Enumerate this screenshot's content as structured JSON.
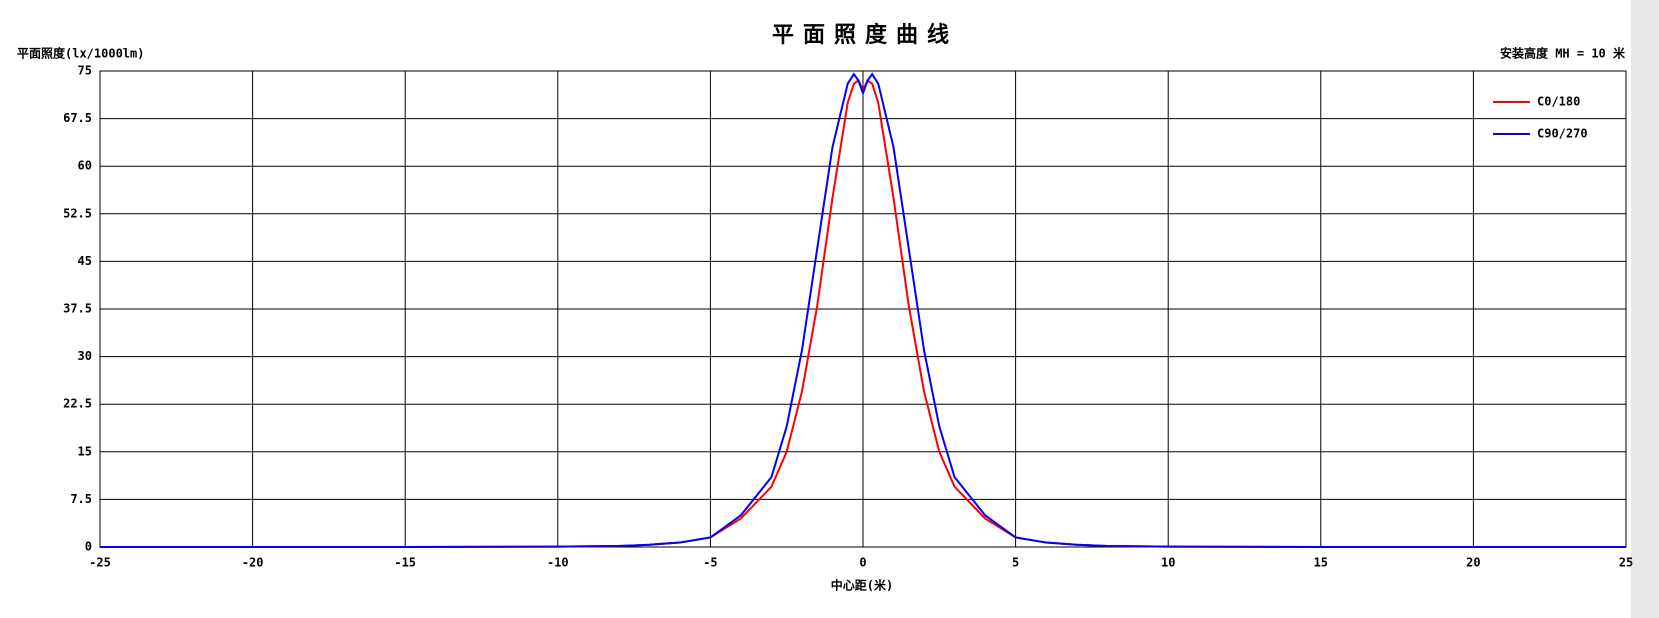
{
  "chart_data": {
    "type": "line",
    "title": "平面照度曲线",
    "y_label": "平面照度(lx/1000lm)",
    "subtitle": "安装高度 MH = 10 米",
    "x_label": "中心距(米)",
    "x": [
      -25,
      -20,
      -15,
      -10,
      -8,
      -7,
      -6,
      -5,
      -4,
      -3,
      -2.5,
      -2,
      -1.5,
      -1,
      -0.5,
      -0.3,
      -0.15,
      0,
      0.15,
      0.3,
      0.5,
      1,
      1.5,
      2,
      2.5,
      3,
      4,
      5,
      6,
      7,
      8,
      10,
      15,
      20,
      25
    ],
    "series": [
      {
        "name": "C0/180",
        "color": "#ff0000",
        "values": [
          0,
          0,
          0,
          0.05,
          0.15,
          0.35,
          0.7,
          1.5,
          4.5,
          9.5,
          15,
          24.5,
          38,
          55,
          70,
          73,
          73.5,
          72,
          73.5,
          73,
          70,
          55,
          38,
          24.5,
          15,
          9.5,
          4.5,
          1.5,
          0.7,
          0.35,
          0.15,
          0.05,
          0,
          0,
          0
        ]
      },
      {
        "name": "C90/270",
        "color": "#0000ff",
        "values": [
          0,
          0,
          0,
          0.05,
          0.15,
          0.35,
          0.7,
          1.5,
          5,
          11,
          19,
          31,
          47,
          63,
          73,
          74.5,
          73.5,
          71.5,
          73.5,
          74.5,
          73,
          63,
          47,
          31,
          19,
          11,
          5,
          1.5,
          0.7,
          0.35,
          0.15,
          0.05,
          0,
          0,
          0
        ]
      }
    ],
    "xlim": [
      -25,
      25
    ],
    "xticks": [
      -25,
      -20,
      -15,
      -10,
      -5,
      0,
      5,
      10,
      15,
      20,
      25
    ],
    "ylim": [
      0,
      75
    ],
    "yticks": [
      0,
      7.5,
      15,
      22.5,
      30,
      37.5,
      45,
      52.5,
      60,
      67.5,
      75
    ],
    "grid": true,
    "legend": "upper right"
  }
}
